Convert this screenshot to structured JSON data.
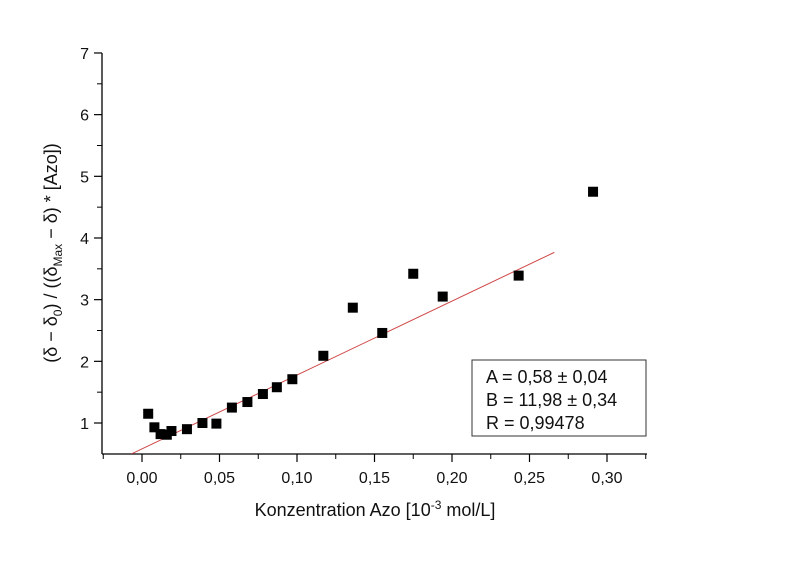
{
  "chart_data": {
    "type": "scatter",
    "xlabel": "Konzentration Azo [10",
    "xlabel_sup": "-3",
    "xlabel_tail": " mol/L]",
    "ylabel_parts": {
      "p1": "(δ − δ",
      "sub1": "0",
      "p2": ") / ((δ",
      "sub2": "Max",
      "p3": " − δ) * [Azo])"
    },
    "xlim": [
      -0.026,
      0.326
    ],
    "ylim": [
      0.5,
      7
    ],
    "x_ticks": [
      0.0,
      0.05,
      0.1,
      0.15,
      0.2,
      0.25,
      0.3
    ],
    "x_tick_labels": [
      "0,00",
      "0,05",
      "0,10",
      "0,15",
      "0,20",
      "0,25",
      "0,30"
    ],
    "y_ticks": [
      1,
      2,
      3,
      4,
      5,
      6,
      7
    ],
    "y_tick_labels": [
      "1",
      "2",
      "3",
      "4",
      "5",
      "6",
      "7"
    ],
    "grid": false,
    "marker_color": "#000000",
    "fit_color": "#d04848",
    "points": {
      "x": [
        0.004,
        0.008,
        0.012,
        0.016,
        0.019,
        0.029,
        0.039,
        0.048,
        0.058,
        0.068,
        0.078,
        0.087,
        0.097,
        0.117,
        0.136,
        0.155,
        0.175,
        0.194,
        0.243,
        0.291
      ],
      "y": [
        1.15,
        0.93,
        0.82,
        0.81,
        0.87,
        0.9,
        1.0,
        0.99,
        1.25,
        1.34,
        1.47,
        1.58,
        1.71,
        2.09,
        2.87,
        2.46,
        3.42,
        3.05,
        3.39,
        4.75
      ]
    },
    "fit": {
      "intercept": 0.58,
      "slope": 11.98,
      "x_range": [
        -0.0067,
        0.266
      ]
    },
    "annotation": {
      "line_a": "A = 0,58 ± 0,04",
      "line_b": "B = 11,98 ± 0,34",
      "line_r": "R = 0,99478"
    }
  }
}
